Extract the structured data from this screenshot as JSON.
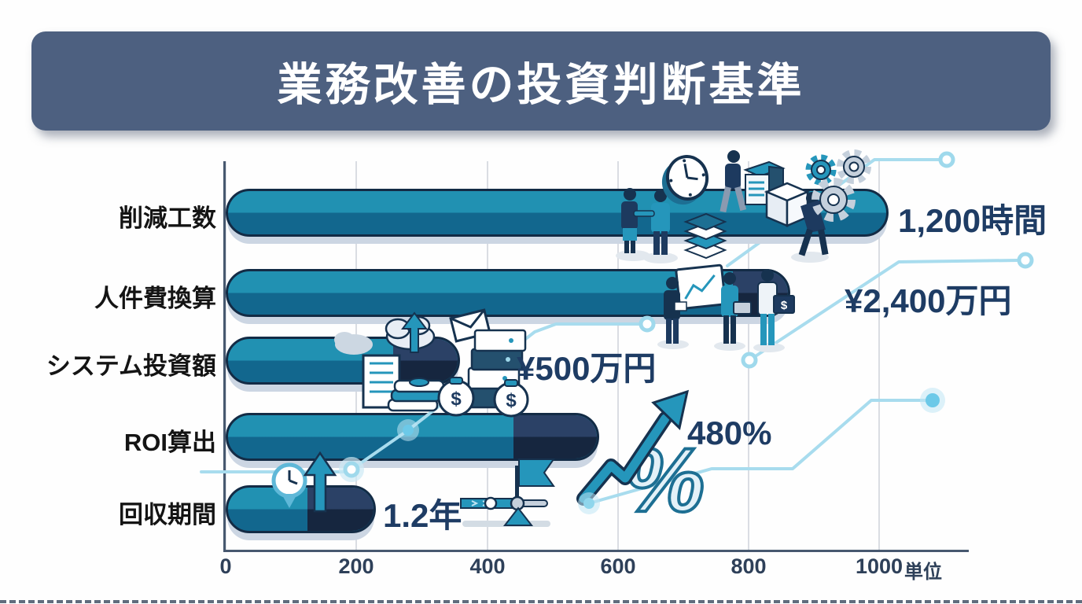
{
  "title": "業務改善の投資判断基準",
  "axis": {
    "tick_labels": [
      "0",
      "200",
      "400",
      "600",
      "800",
      "1000"
    ],
    "unit_label": "単位"
  },
  "chart_data": {
    "type": "bar",
    "orientation": "horizontal",
    "title": "業務改善の投資判断基準",
    "categories": [
      "削減工数",
      "人件費換算",
      "システム投資額",
      "ROI算出",
      "回収期間"
    ],
    "value_labels": [
      "1,200時間",
      "¥2,400万円",
      "¥500万円",
      "480%",
      "1.2年"
    ],
    "values": [
      1200,
      2400,
      500,
      480,
      1.2
    ],
    "units": [
      "時間",
      "万円",
      "万円",
      "%",
      "年"
    ],
    "bars": [
      {
        "category": "削減工数",
        "value_label": "1,200時間",
        "length_units": 1014,
        "accent_units": 1014
      },
      {
        "category": "人件費換算",
        "value_label": "¥2,400万円",
        "length_units": 864,
        "accent_units": 780
      },
      {
        "category": "システム投資額",
        "value_label": "¥500万円",
        "length_units": 359,
        "accent_units": 260
      },
      {
        "category": "ROI算出",
        "value_label": "480%",
        "length_units": 572,
        "accent_units": 444
      },
      {
        "category": "回収期間",
        "value_label": "1.2年",
        "length_units": 230,
        "accent_units": 129
      }
    ],
    "xlim": [
      0,
      1000
    ],
    "x_ticks": [
      0,
      200,
      400,
      600,
      800,
      1000
    ],
    "x_unit_label": "単位",
    "grid": "vertical-only",
    "legend": false
  },
  "colors": {
    "banner_bg": "#4d6080",
    "banner_text": "#ffffff",
    "bar_teal_top": "#2191b2",
    "bar_teal_bottom": "#12678e",
    "bar_navy_top": "#2b4166",
    "bar_navy_bottom": "#16263f",
    "bar_outline": "#132b45",
    "bar_shadow": "#ccd6e3",
    "value_text": "#1e3c64",
    "category_text": "#141414",
    "axis": "#47586f",
    "gridline": "#dadde3",
    "circuit_line": "#a8dcee",
    "glow_dot": "#6cc9e8"
  },
  "icons": [
    "clock-icon",
    "gear-icon",
    "handshake-people-icon",
    "worker-with-server-icon",
    "cube-icon",
    "books-stack-icon",
    "pushing-person-icon",
    "presentation-chart-icon",
    "calculator-person-icon",
    "money-box-person-icon",
    "cloud-upload-icon",
    "building-icon",
    "server-rack-icon",
    "money-stack-icon",
    "money-bag-icon",
    "mail-icon",
    "growth-arrow-icon",
    "percent-icon",
    "clock-pin-icon",
    "up-arrow-icon",
    "milestone-flag-timeline-icon",
    "circuit-node-ring",
    "circuit-glow-dot"
  ]
}
